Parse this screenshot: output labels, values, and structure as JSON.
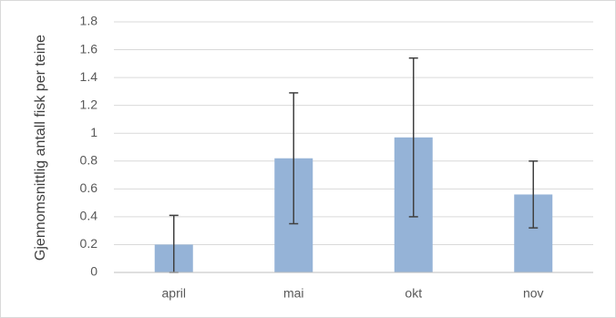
{
  "chart_data": {
    "type": "bar",
    "y_label": "Gjennomsnittlig antall fisk per teine",
    "categories": [
      "april",
      "mai",
      "okt",
      "nov"
    ],
    "values": [
      0.2,
      0.82,
      0.97,
      0.56
    ],
    "errors": [
      0.21,
      0.47,
      0.57,
      0.24
    ],
    "color": "#95b3d7",
    "ylim": [
      0,
      1.8
    ],
    "yticks": [
      0,
      0.2,
      0.4,
      0.6,
      0.8,
      1,
      1.2,
      1.4,
      1.6,
      1.8
    ],
    "grid": true
  }
}
